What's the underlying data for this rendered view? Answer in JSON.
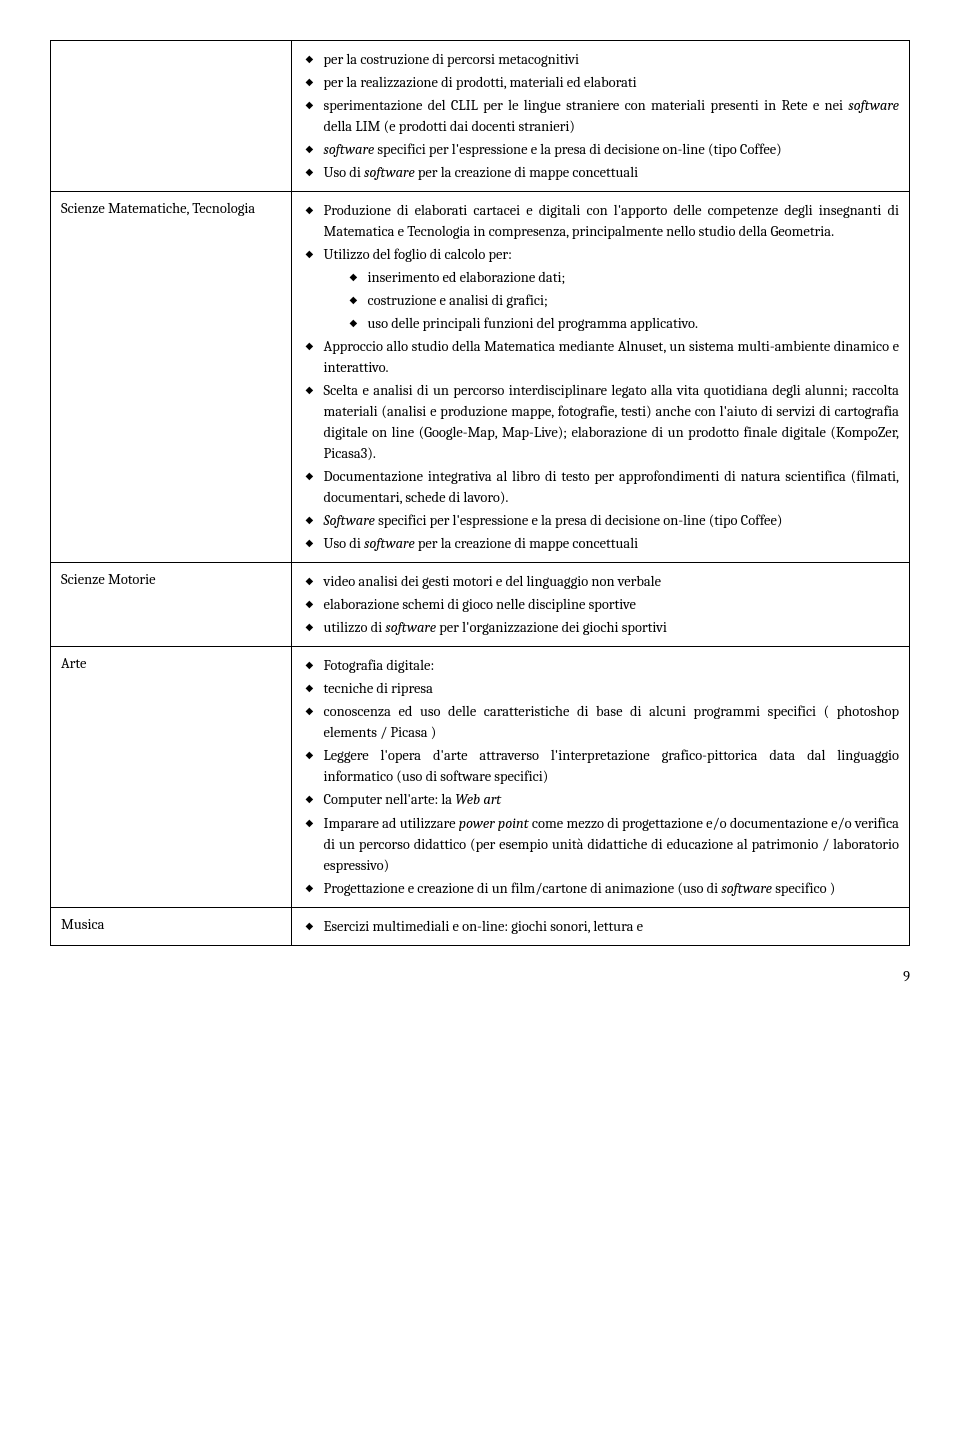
{
  "rows": [
    {
      "left": "",
      "items": [
        {
          "t": "per la costruzione di percorsi metacognitivi"
        },
        {
          "t": "per la realizzazione di prodotti, materiali ed elaborati"
        },
        {
          "t": "sperimentazione del CLIL per le lingue straniere con materiali presenti in Rete e nei <em>software</em> della LIM (e prodotti dai docenti stranieri)"
        },
        {
          "t": "<em>software</em> specifici per l'espressione e la presa di decisione on-line (tipo Coffee)"
        },
        {
          "t": "Uso di <em>software</em> per la creazione di mappe concettuali"
        }
      ]
    },
    {
      "left": "Scienze Matematiche, Tecnologia",
      "items": [
        {
          "t": "Produzione di elaborati cartacei e digitali con l'apporto delle competenze degli insegnanti di Matematica e Tecnologia in compresenza, principalmente nello studio della Geometria."
        },
        {
          "t": "Utilizzo del foglio di calcolo per:",
          "sub": [
            "inserimento ed elaborazione dati;",
            "costruzione e analisi di grafici;",
            "uso delle principali funzioni del programma applicativo."
          ]
        },
        {
          "t": "Approccio allo studio della Matematica mediante Alnuset, un sistema multi-ambiente dinamico e interattivo."
        },
        {
          "t": "Scelta e analisi di un percorso interdisciplinare legato alla vita quotidiana degli alunni; raccolta materiali (analisi e produzione mappe, fotografie, testi) anche con l'aiuto di servizi di cartografia digitale on line (Google-Map, Map-Live); elaborazione di un prodotto finale digitale (KompoZer, Picasa3)."
        },
        {
          "t": "Documentazione integrativa al libro di testo per approfondimenti di natura scientifica (filmati, documentari, schede di lavoro)."
        },
        {
          "t": "<em>Software</em> specifici per l'espressione e la presa di decisione on-line (tipo Coffee)"
        },
        {
          "t": "Uso di <em>software</em> per la creazione di mappe concettuali"
        }
      ]
    },
    {
      "left": "Scienze Motorie",
      "items": [
        {
          "t": "video analisi dei gesti motori e del linguaggio non verbale"
        },
        {
          "t": "elaborazione schemi di gioco nelle discipline sportive"
        },
        {
          "t": "utilizzo di <em>software</em> per l'organizzazione dei giochi sportivi"
        }
      ]
    },
    {
      "left": "Arte",
      "items": [
        {
          "t": "Fotografia digitale:"
        },
        {
          "t": "tecniche di ripresa"
        },
        {
          "t": "conoscenza ed uso delle caratteristiche di base di alcuni programmi specifici ( photoshop elements / Picasa )"
        },
        {
          "t": "Leggere l'opera d'arte attraverso l'interpretazione grafico-pittorica  data  dal linguaggio informatico (uso di software specifici)"
        },
        {
          "t": "Computer nell'arte: la <em>Web art</em>"
        },
        {
          "t": "Imparare ad utilizzare <em>power point</em> come mezzo di progettazione  e/o documentazione e/o verifica di un percorso didattico (per esempio unità didattiche di educazione al patrimonio / laboratorio espressivo)"
        },
        {
          "t": "Progettazione e creazione di  un film/cartone di animazione (uso di <em>software</em> specifico )"
        }
      ]
    },
    {
      "left": "Musica",
      "items": [
        {
          "t": "Esercizi multimediali e on-line: giochi sonori, lettura e"
        }
      ]
    }
  ],
  "pageNumber": "9"
}
